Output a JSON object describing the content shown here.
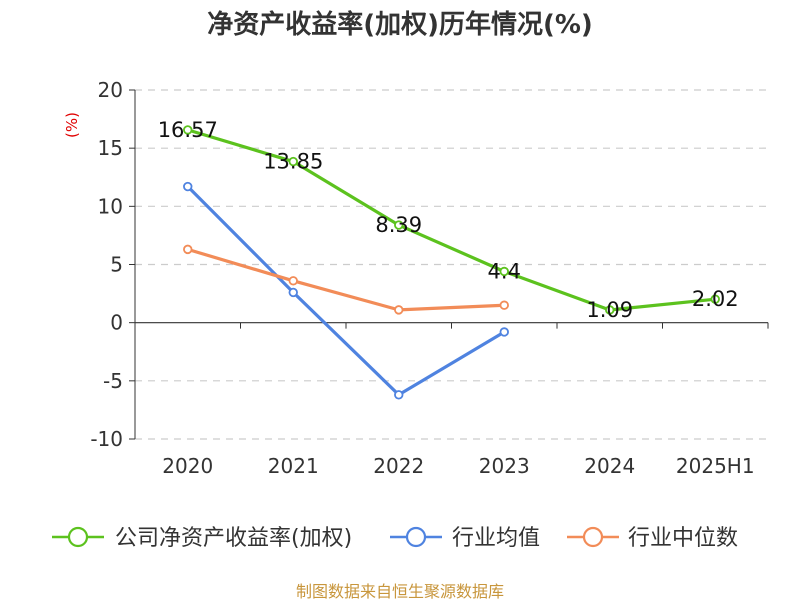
{
  "title": "净资产收益率(加权)历年情况(%)",
  "source": "制图数据来自恒生聚源数据库",
  "chart_data": {
    "type": "line",
    "title": "净资产收益率(加权)历年情况(%)",
    "ylabel": "(%)",
    "ylim": [
      -10,
      20
    ],
    "yticks": [
      20,
      15,
      10,
      5,
      0,
      -5,
      -10
    ],
    "categories": [
      "2020",
      "2021",
      "2022",
      "2023",
      "2024",
      "2025H1"
    ],
    "grid": true,
    "legend_position": "bottom",
    "series": [
      {
        "name": "公司净资产收益率(加权)",
        "color": "#5cc21e",
        "values": [
          16.57,
          13.85,
          8.39,
          4.4,
          1.09,
          2.02
        ],
        "labels": [
          "16.57",
          "13.85",
          "8.39",
          "4.4",
          "1.09",
          "2.02"
        ]
      },
      {
        "name": "行业均值",
        "color": "#4f83e0",
        "values": [
          11.7,
          2.6,
          -6.2,
          -0.8,
          null,
          null
        ]
      },
      {
        "name": "行业中位数",
        "color": "#f28c58",
        "values": [
          6.3,
          3.6,
          1.1,
          1.5,
          null,
          null
        ]
      }
    ]
  }
}
